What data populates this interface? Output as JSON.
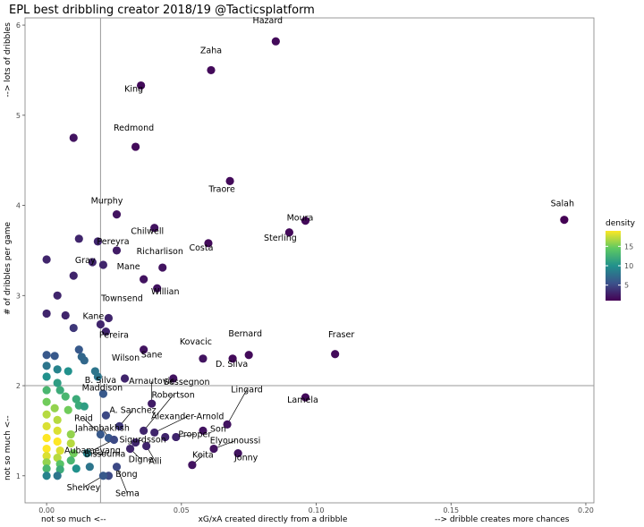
{
  "chart_data": {
    "type": "scatter",
    "title": "EPL best dribbling creator 2018/19 @Tacticsplatform",
    "xlabel": "xG/xA created directly from a dribble",
    "xlabel_left": "not so much <--",
    "xlabel_right": "--> dribble creates more chances",
    "ylabel": "# of dribbles per game",
    "ylabel_bottom": "not so much <--",
    "ylabel_top": "--> lots of dribbles",
    "xlim": [
      -0.008,
      0.203
    ],
    "ylim": [
      0.7,
      6.08
    ],
    "xticks": [
      0.0,
      0.05,
      0.1,
      0.15,
      0.2
    ],
    "xtick_labels": [
      "0.00",
      "0.05",
      "0.10",
      "0.15",
      "0.20"
    ],
    "yticks": [
      1,
      2,
      3,
      4,
      5,
      6
    ],
    "ytick_labels": [
      "1",
      "2",
      "3",
      "4",
      "5",
      "6"
    ],
    "reference_lines": {
      "x": 0.02,
      "y": 2.0
    },
    "grid": false,
    "legend": {
      "title": "density",
      "placement": "right",
      "ticks": [
        5,
        10,
        15
      ],
      "range": [
        1,
        19
      ]
    },
    "colormap": [
      "#440154",
      "#3b528b",
      "#21918c",
      "#5ec962",
      "#fde725"
    ],
    "points": [
      {
        "x": 0.085,
        "y": 5.82,
        "d": 1.5,
        "label": "Hazard"
      },
      {
        "x": 0.061,
        "y": 5.5,
        "d": 1.5,
        "label": "Zaha"
      },
      {
        "x": 0.035,
        "y": 5.33,
        "d": 1.5,
        "label": "King"
      },
      {
        "x": 0.01,
        "y": 4.75,
        "d": 2
      },
      {
        "x": 0.033,
        "y": 4.65,
        "d": 1.5,
        "label": "Redmond"
      },
      {
        "x": 0.068,
        "y": 4.27,
        "d": 1.5,
        "label": "Traore"
      },
      {
        "x": 0.192,
        "y": 3.84,
        "d": 1,
        "label": "Salah"
      },
      {
        "x": 0.026,
        "y": 3.9,
        "d": 2,
        "label": "Murphy"
      },
      {
        "x": 0.096,
        "y": 3.83,
        "d": 1.5,
        "label": "Moura"
      },
      {
        "x": 0.04,
        "y": 3.75,
        "d": 2,
        "label": "Chilwell"
      },
      {
        "x": 0.09,
        "y": 3.7,
        "d": 1.5,
        "label": "Sterling"
      },
      {
        "x": 0.012,
        "y": 3.63,
        "d": 3
      },
      {
        "x": 0.019,
        "y": 3.6,
        "d": 3
      },
      {
        "x": 0.06,
        "y": 3.58,
        "d": 1.5,
        "label": "Costa"
      },
      {
        "x": 0.026,
        "y": 3.5,
        "d": 2.5,
        "label": "Pereyra"
      },
      {
        "x": 0.0,
        "y": 3.4,
        "d": 3
      },
      {
        "x": 0.017,
        "y": 3.37,
        "d": 3
      },
      {
        "x": 0.021,
        "y": 3.34,
        "d": 3
      },
      {
        "x": 0.043,
        "y": 3.31,
        "d": 2,
        "label": "Richarlison"
      },
      {
        "x": 0.01,
        "y": 3.22,
        "d": 3,
        "label": "Gray"
      },
      {
        "x": 0.036,
        "y": 3.18,
        "d": 2,
        "label": "Mane"
      },
      {
        "x": 0.041,
        "y": 3.08,
        "d": 2,
        "label": "Willian"
      },
      {
        "x": 0.004,
        "y": 3.0,
        "d": 3
      },
      {
        "x": 0.0,
        "y": 2.8,
        "d": 3
      },
      {
        "x": 0.007,
        "y": 2.78,
        "d": 3
      },
      {
        "x": 0.023,
        "y": 2.75,
        "d": 3,
        "label": "Townsend"
      },
      {
        "x": 0.02,
        "y": 2.68,
        "d": 3,
        "label": "Kane"
      },
      {
        "x": 0.01,
        "y": 2.64,
        "d": 4
      },
      {
        "x": 0.022,
        "y": 2.6,
        "d": 3,
        "label": "Pereira"
      },
      {
        "x": 0.036,
        "y": 2.4,
        "d": 2,
        "label": "Sane"
      },
      {
        "x": 0.107,
        "y": 2.35,
        "d": 1.5,
        "label": "Fraser"
      },
      {
        "x": 0.075,
        "y": 2.34,
        "d": 1.5,
        "label": "Bernard"
      },
      {
        "x": 0.058,
        "y": 2.3,
        "d": 2,
        "label": "Kovacic"
      },
      {
        "x": 0.069,
        "y": 2.3,
        "d": 1.5,
        "label": "D. Silva"
      },
      {
        "x": 0.029,
        "y": 2.08,
        "d": 3,
        "label": "Wilson"
      },
      {
        "x": 0.047,
        "y": 2.08,
        "d": 2,
        "label": "Sessegnon"
      },
      {
        "x": 0.096,
        "y": 1.87,
        "d": 1.5,
        "label": "Lamela"
      },
      {
        "x": 0.021,
        "y": 1.91,
        "d": 6,
        "label": "B. Silva"
      },
      {
        "x": 0.039,
        "y": 1.8,
        "d": 2.5,
        "label": "Arnautovic"
      },
      {
        "x": 0.022,
        "y": 1.67,
        "d": 5,
        "label": "Maddison"
      },
      {
        "x": 0.027,
        "y": 1.55,
        "d": 4,
        "label": "A. Sanchez"
      },
      {
        "x": 0.067,
        "y": 1.57,
        "d": 2,
        "label": "Lingard"
      },
      {
        "x": 0.058,
        "y": 1.5,
        "d": 2,
        "label": "Son"
      },
      {
        "x": 0.036,
        "y": 1.5,
        "d": 3,
        "label": "Robertson"
      },
      {
        "x": 0.02,
        "y": 1.46,
        "d": 6,
        "label": "Reid"
      },
      {
        "x": 0.04,
        "y": 1.48,
        "d": 3,
        "label": "Alexander-Arnold"
      },
      {
        "x": 0.044,
        "y": 1.43,
        "d": 3
      },
      {
        "x": 0.048,
        "y": 1.43,
        "d": 3,
        "label": "Propper"
      },
      {
        "x": 0.023,
        "y": 1.42,
        "d": 6,
        "label": "Jahanbakhsh"
      },
      {
        "x": 0.025,
        "y": 1.4,
        "d": 5,
        "label": "Aubameyang"
      },
      {
        "x": 0.033,
        "y": 1.37,
        "d": 3,
        "label": "Sigurdsson"
      },
      {
        "x": 0.037,
        "y": 1.33,
        "d": 3,
        "label": "Alli"
      },
      {
        "x": 0.031,
        "y": 1.3,
        "d": 3,
        "label": "Digne"
      },
      {
        "x": 0.071,
        "y": 1.25,
        "d": 2,
        "label": "Jonny"
      },
      {
        "x": 0.062,
        "y": 1.3,
        "d": 2,
        "label": "Elyounoussi"
      },
      {
        "x": 0.015,
        "y": 1.25,
        "d": 9,
        "label": "Bissouma"
      },
      {
        "x": 0.054,
        "y": 1.12,
        "d": 2,
        "label": "Keita"
      },
      {
        "x": 0.026,
        "y": 1.1,
        "d": 5,
        "label": "Sema"
      },
      {
        "x": 0.023,
        "y": 1.0,
        "d": 5,
        "label": "Bong"
      },
      {
        "x": 0.021,
        "y": 1.0,
        "d": 6,
        "label": "Shelvey"
      },
      {
        "x": 0.0,
        "y": 2.34,
        "d": 6
      },
      {
        "x": 0.003,
        "y": 2.33,
        "d": 6
      },
      {
        "x": 0.012,
        "y": 2.4,
        "d": 6
      },
      {
        "x": 0.013,
        "y": 2.32,
        "d": 7
      },
      {
        "x": 0.014,
        "y": 2.28,
        "d": 7
      },
      {
        "x": 0.0,
        "y": 2.22,
        "d": 8
      },
      {
        "x": 0.004,
        "y": 2.18,
        "d": 9
      },
      {
        "x": 0.008,
        "y": 2.16,
        "d": 10
      },
      {
        "x": 0.018,
        "y": 2.16,
        "d": 8
      },
      {
        "x": 0.019,
        "y": 2.1,
        "d": 8
      },
      {
        "x": 0.0,
        "y": 2.1,
        "d": 10
      },
      {
        "x": 0.004,
        "y": 2.03,
        "d": 11
      },
      {
        "x": 0.005,
        "y": 1.95,
        "d": 12
      },
      {
        "x": 0.0,
        "y": 1.95,
        "d": 13
      },
      {
        "x": 0.007,
        "y": 1.88,
        "d": 13
      },
      {
        "x": 0.011,
        "y": 1.85,
        "d": 12
      },
      {
        "x": 0.012,
        "y": 1.78,
        "d": 12
      },
      {
        "x": 0.014,
        "y": 1.77,
        "d": 11
      },
      {
        "x": 0.0,
        "y": 1.82,
        "d": 15
      },
      {
        "x": 0.003,
        "y": 1.75,
        "d": 16
      },
      {
        "x": 0.008,
        "y": 1.73,
        "d": 15
      },
      {
        "x": 0.0,
        "y": 1.68,
        "d": 17
      },
      {
        "x": 0.004,
        "y": 1.62,
        "d": 17
      },
      {
        "x": 0.0,
        "y": 1.55,
        "d": 18
      },
      {
        "x": 0.004,
        "y": 1.5,
        "d": 18
      },
      {
        "x": 0.009,
        "y": 1.46,
        "d": 16
      },
      {
        "x": 0.0,
        "y": 1.42,
        "d": 19
      },
      {
        "x": 0.004,
        "y": 1.38,
        "d": 19
      },
      {
        "x": 0.009,
        "y": 1.36,
        "d": 17
      },
      {
        "x": 0.0,
        "y": 1.3,
        "d": 19
      },
      {
        "x": 0.005,
        "y": 1.28,
        "d": 18
      },
      {
        "x": 0.0,
        "y": 1.22,
        "d": 18
      },
      {
        "x": 0.004,
        "y": 1.2,
        "d": 17
      },
      {
        "x": 0.01,
        "y": 1.25,
        "d": 15
      },
      {
        "x": 0.0,
        "y": 1.15,
        "d": 16
      },
      {
        "x": 0.005,
        "y": 1.13,
        "d": 14
      },
      {
        "x": 0.009,
        "y": 1.17,
        "d": 13
      },
      {
        "x": 0.0,
        "y": 1.08,
        "d": 13
      },
      {
        "x": 0.005,
        "y": 1.07,
        "d": 12
      },
      {
        "x": 0.011,
        "y": 1.08,
        "d": 10
      },
      {
        "x": 0.016,
        "y": 1.1,
        "d": 8
      },
      {
        "x": 0.0,
        "y": 1.0,
        "d": 9
      },
      {
        "x": 0.004,
        "y": 1.0,
        "d": 8
      }
    ]
  }
}
